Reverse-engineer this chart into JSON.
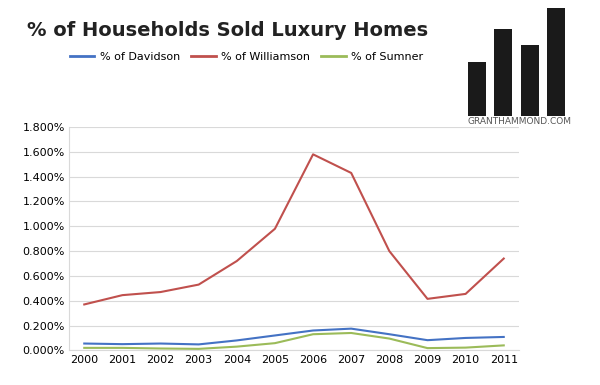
{
  "title": "% of Households Sold Luxury Homes",
  "years": [
    2000,
    2001,
    2002,
    2003,
    2004,
    2005,
    2006,
    2007,
    2008,
    2009,
    2010,
    2011
  ],
  "davidson": [
    0.00055,
    0.0005,
    0.00055,
    0.00048,
    0.0008,
    0.0012,
    0.0016,
    0.00175,
    0.0013,
    0.00082,
    0.001,
    0.00108
  ],
  "williamson": [
    0.0037,
    0.00445,
    0.0047,
    0.0053,
    0.0072,
    0.0098,
    0.0158,
    0.0143,
    0.008,
    0.00415,
    0.00455,
    0.0074
  ],
  "sumner": [
    0.0002,
    0.0002,
    0.00015,
    0.00012,
    0.0003,
    0.00058,
    0.0013,
    0.0014,
    0.00095,
    0.00018,
    0.00022,
    0.0004
  ],
  "davidson_color": "#4472C4",
  "williamson_color": "#C0504D",
  "sumner_color": "#9BBB59",
  "legend_davidson": "% of Davidson",
  "legend_williamson": "% of Williamson",
  "legend_sumner": "% of Sumner",
  "ylim": [
    0,
    0.018
  ],
  "ytick_values": [
    0.0,
    0.002,
    0.004,
    0.006,
    0.008,
    0.01,
    0.012,
    0.014,
    0.016,
    0.018
  ],
  "ytick_labels": [
    "0.000%",
    "0.200%",
    "0.400%",
    "0.600%",
    "0.800%",
    "1.000%",
    "1.200%",
    "1.400%",
    "1.600%",
    "1.800%"
  ],
  "bg_color": "#FFFFFF",
  "grid_color": "#D9D9D9",
  "watermark_text": "GRANTHAMMOND.COM",
  "title_fontsize": 14,
  "tick_fontsize": 8,
  "legend_fontsize": 8
}
